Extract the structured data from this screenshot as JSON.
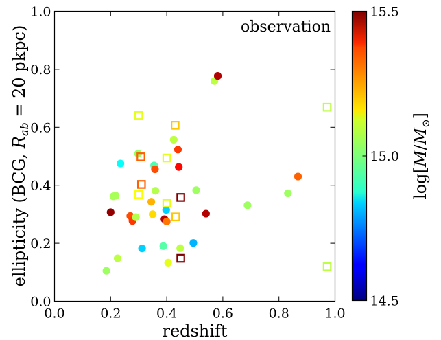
{
  "chart_data": {
    "type": "scatter",
    "annotation": "observation",
    "xlabel": "redshift",
    "ylabel": "ellipticity (BCG, R_ab = 20 pkpc)",
    "ylabel_parts": {
      "prefix": "ellipticity (BCG, ",
      "var": "R",
      "sub": "ab",
      "suffix": " = 20 pkpc)"
    },
    "xlim": [
      0.0,
      1.0
    ],
    "ylim": [
      0.0,
      1.0
    ],
    "xticks": [
      "0.0",
      "0.2",
      "0.4",
      "0.6",
      "0.8",
      "1.0"
    ],
    "yticks": [
      "0.0",
      "0.2",
      "0.4",
      "0.6",
      "0.8",
      "1.0"
    ],
    "grid": false,
    "colorbar": {
      "label": "log[M/M⊙]",
      "label_parts": {
        "open": "log[",
        "m1": "M",
        "slash": "/",
        "m2": "M",
        "sun": "⊙",
        "close": "]"
      },
      "range": [
        14.5,
        15.5
      ],
      "ticks": [
        "14.5",
        "15.0",
        "15.5"
      ],
      "colormap": "jet"
    },
    "series": [
      {
        "marker": "circle-filled",
        "points": [
          {
            "x": 0.185,
            "y": 0.105,
            "m": 15.03
          },
          {
            "x": 0.2,
            "y": 0.307,
            "m": 15.48
          },
          {
            "x": 0.21,
            "y": 0.362,
            "m": 15.04
          },
          {
            "x": 0.218,
            "y": 0.364,
            "m": 15.04
          },
          {
            "x": 0.225,
            "y": 0.148,
            "m": 15.06
          },
          {
            "x": 0.235,
            "y": 0.475,
            "m": 14.88
          },
          {
            "x": 0.27,
            "y": 0.294,
            "m": 15.3
          },
          {
            "x": 0.278,
            "y": 0.277,
            "m": 15.32
          },
          {
            "x": 0.29,
            "y": 0.29,
            "m": 15.05
          },
          {
            "x": 0.298,
            "y": 0.509,
            "m": 15.02
          },
          {
            "x": 0.312,
            "y": 0.182,
            "m": 14.83
          },
          {
            "x": 0.345,
            "y": 0.343,
            "m": 15.2
          },
          {
            "x": 0.35,
            "y": 0.3,
            "m": 15.16
          },
          {
            "x": 0.355,
            "y": 0.468,
            "m": 14.95
          },
          {
            "x": 0.358,
            "y": 0.455,
            "m": 15.3
          },
          {
            "x": 0.36,
            "y": 0.381,
            "m": 15.05
          },
          {
            "x": 0.388,
            "y": 0.19,
            "m": 14.96
          },
          {
            "x": 0.392,
            "y": 0.283,
            "m": 15.45
          },
          {
            "x": 0.398,
            "y": 0.315,
            "m": 14.83
          },
          {
            "x": 0.4,
            "y": 0.275,
            "m": 15.26
          },
          {
            "x": 0.405,
            "y": 0.133,
            "m": 15.1
          },
          {
            "x": 0.425,
            "y": 0.557,
            "m": 15.06
          },
          {
            "x": 0.44,
            "y": 0.523,
            "m": 15.32
          },
          {
            "x": 0.443,
            "y": 0.463,
            "m": 15.37
          },
          {
            "x": 0.448,
            "y": 0.183,
            "m": 15.06
          },
          {
            "x": 0.495,
            "y": 0.201,
            "m": 14.8
          },
          {
            "x": 0.505,
            "y": 0.383,
            "m": 15.03
          },
          {
            "x": 0.54,
            "y": 0.302,
            "m": 15.45
          },
          {
            "x": 0.57,
            "y": 0.759,
            "m": 15.06
          },
          {
            "x": 0.582,
            "y": 0.777,
            "m": 15.45
          },
          {
            "x": 0.688,
            "y": 0.331,
            "m": 15.03
          },
          {
            "x": 0.832,
            "y": 0.372,
            "m": 15.03
          },
          {
            "x": 0.868,
            "y": 0.43,
            "m": 15.28
          }
        ]
      },
      {
        "marker": "square-open",
        "points": [
          {
            "x": 0.3,
            "y": 0.641,
            "m": 15.1
          },
          {
            "x": 0.3,
            "y": 0.368,
            "m": 15.12
          },
          {
            "x": 0.308,
            "y": 0.498,
            "m": 15.28
          },
          {
            "x": 0.31,
            "y": 0.403,
            "m": 15.28
          },
          {
            "x": 0.4,
            "y": 0.494,
            "m": 15.1
          },
          {
            "x": 0.4,
            "y": 0.338,
            "m": 15.1
          },
          {
            "x": 0.43,
            "y": 0.607,
            "m": 15.18
          },
          {
            "x": 0.432,
            "y": 0.291,
            "m": 15.18
          },
          {
            "x": 0.45,
            "y": 0.358,
            "m": 15.5
          },
          {
            "x": 0.45,
            "y": 0.148,
            "m": 15.5
          },
          {
            "x": 0.972,
            "y": 0.669,
            "m": 15.06
          },
          {
            "x": 0.972,
            "y": 0.119,
            "m": 15.06
          }
        ]
      }
    ]
  }
}
